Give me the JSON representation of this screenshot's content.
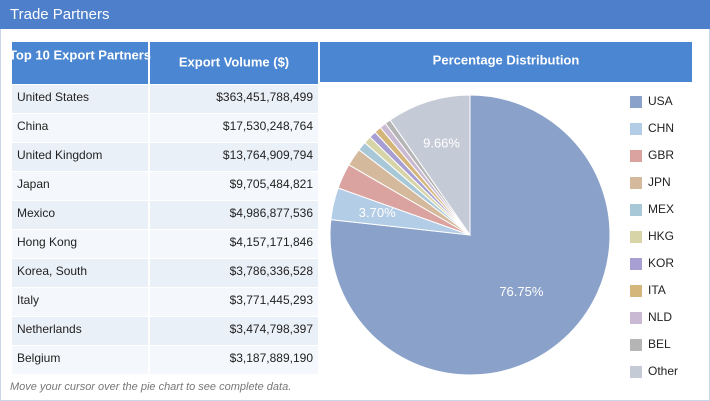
{
  "header": {
    "title": "Trade Partners"
  },
  "table": {
    "columns": [
      "Top 10 Export Partners",
      "Export Volume ($)"
    ],
    "rows": [
      [
        "United States",
        "$363,451,788,499"
      ],
      [
        "China",
        "$17,530,248,764"
      ],
      [
        "United Kingdom",
        "$13,764,909,794"
      ],
      [
        "Japan",
        "$9,705,484,821"
      ],
      [
        "Mexico",
        "$4,986,877,536"
      ],
      [
        "Hong Kong",
        "$4,157,171,846"
      ],
      [
        "Korea, South",
        "$3,786,336,528"
      ],
      [
        "Italy",
        "$3,771,445,293"
      ],
      [
        "Netherlands",
        "$3,474,798,397"
      ],
      [
        "Belgium",
        "$3,187,889,190"
      ]
    ]
  },
  "chart_data": {
    "type": "pie",
    "title": "Percentage Distribution",
    "categories": [
      "USA",
      "CHN",
      "GBR",
      "JPN",
      "MEX",
      "HKG",
      "KOR",
      "ITA",
      "NLD",
      "BEL",
      "Other"
    ],
    "values": [
      76.75,
      3.7,
      2.91,
      2.05,
      1.05,
      0.88,
      0.8,
      0.8,
      0.73,
      0.67,
      9.66
    ],
    "value_labels": [
      "76.75%",
      "3.70%",
      null,
      null,
      null,
      null,
      null,
      null,
      null,
      null,
      "9.66%"
    ],
    "colors": [
      "#8aa1c9",
      "#b4cde6",
      "#dba3a0",
      "#d5b99c",
      "#a9c8d7",
      "#d7d4a8",
      "#a79fd4",
      "#d5b67a",
      "#c9b9d3",
      "#b5b5b5",
      "#c5cbd6"
    ],
    "legend": "right"
  },
  "note": "Move your cursor over the pie chart to see complete data."
}
